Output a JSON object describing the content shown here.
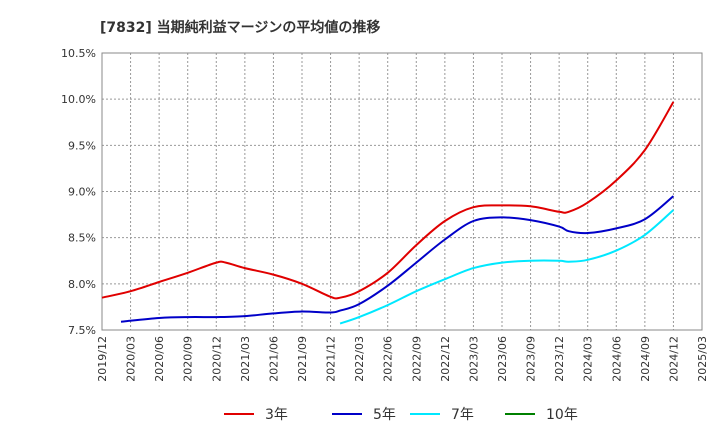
{
  "chart_data": {
    "type": "line",
    "title": "[7832]  当期純利益マージンの平均値の推移",
    "xlabel": "",
    "ylabel": "",
    "ylim": [
      7.5,
      10.5
    ],
    "yticks": [
      "7.5%",
      "8.0%",
      "8.5%",
      "9.0%",
      "9.5%",
      "10.0%",
      "10.5%"
    ],
    "yvalues": [
      7.5,
      8.0,
      8.5,
      9.0,
      9.5,
      10.0,
      10.5
    ],
    "xticks": [
      "2019/12",
      "2020/03",
      "2020/06",
      "2020/09",
      "2020/12",
      "2021/03",
      "2021/06",
      "2021/09",
      "2021/12",
      "2022/03",
      "2022/06",
      "2022/09",
      "2022/12",
      "2023/03",
      "2023/06",
      "2023/09",
      "2023/12",
      "2024/03",
      "2024/06",
      "2024/09",
      "2024/12",
      "2025/03"
    ],
    "grid": true,
    "legend_position": "bottom",
    "series": [
      {
        "name": "3年",
        "color": "#e00000",
        "x": [
          "2019/12",
          "2020/03",
          "2020/06",
          "2020/09",
          "2020/12",
          "2021/01",
          "2021/03",
          "2021/06",
          "2021/09",
          "2021/12",
          "2022/01",
          "2022/03",
          "2022/06",
          "2022/09",
          "2022/12",
          "2023/03",
          "2023/06",
          "2023/09",
          "2023/12",
          "2024/01",
          "2024/03",
          "2024/06",
          "2024/09",
          "2024/12"
        ],
        "values": [
          7.85,
          7.92,
          8.02,
          8.12,
          8.23,
          8.23,
          8.17,
          8.1,
          8.0,
          7.86,
          7.85,
          7.92,
          8.12,
          8.42,
          8.68,
          8.83,
          8.85,
          8.84,
          8.78,
          8.78,
          8.88,
          9.12,
          9.45,
          9.97
        ]
      },
      {
        "name": "5年",
        "color": "#0000c8",
        "x": [
          "2020/02",
          "2020/06",
          "2020/09",
          "2020/12",
          "2021/03",
          "2021/06",
          "2021/09",
          "2021/12",
          "2022/01",
          "2022/03",
          "2022/06",
          "2022/09",
          "2022/12",
          "2023/03",
          "2023/06",
          "2023/09",
          "2023/12",
          "2024/01",
          "2024/03",
          "2024/06",
          "2024/09",
          "2024/12"
        ],
        "values": [
          7.59,
          7.63,
          7.64,
          7.64,
          7.65,
          7.68,
          7.7,
          7.69,
          7.71,
          7.78,
          7.98,
          8.23,
          8.48,
          8.68,
          8.72,
          8.69,
          8.62,
          8.57,
          8.55,
          8.6,
          8.7,
          8.95
        ]
      },
      {
        "name": "7年",
        "color": "#00e8ff",
        "x": [
          "2022/01",
          "2022/03",
          "2022/06",
          "2022/09",
          "2022/12",
          "2023/03",
          "2023/06",
          "2023/09",
          "2023/12",
          "2024/01",
          "2024/03",
          "2024/06",
          "2024/09",
          "2024/12"
        ],
        "values": [
          7.57,
          7.64,
          7.77,
          7.92,
          8.05,
          8.17,
          8.23,
          8.25,
          8.25,
          8.24,
          8.26,
          8.36,
          8.53,
          8.8
        ]
      },
      {
        "name": "10年",
        "color": "#008000",
        "x": [],
        "values": []
      }
    ]
  }
}
